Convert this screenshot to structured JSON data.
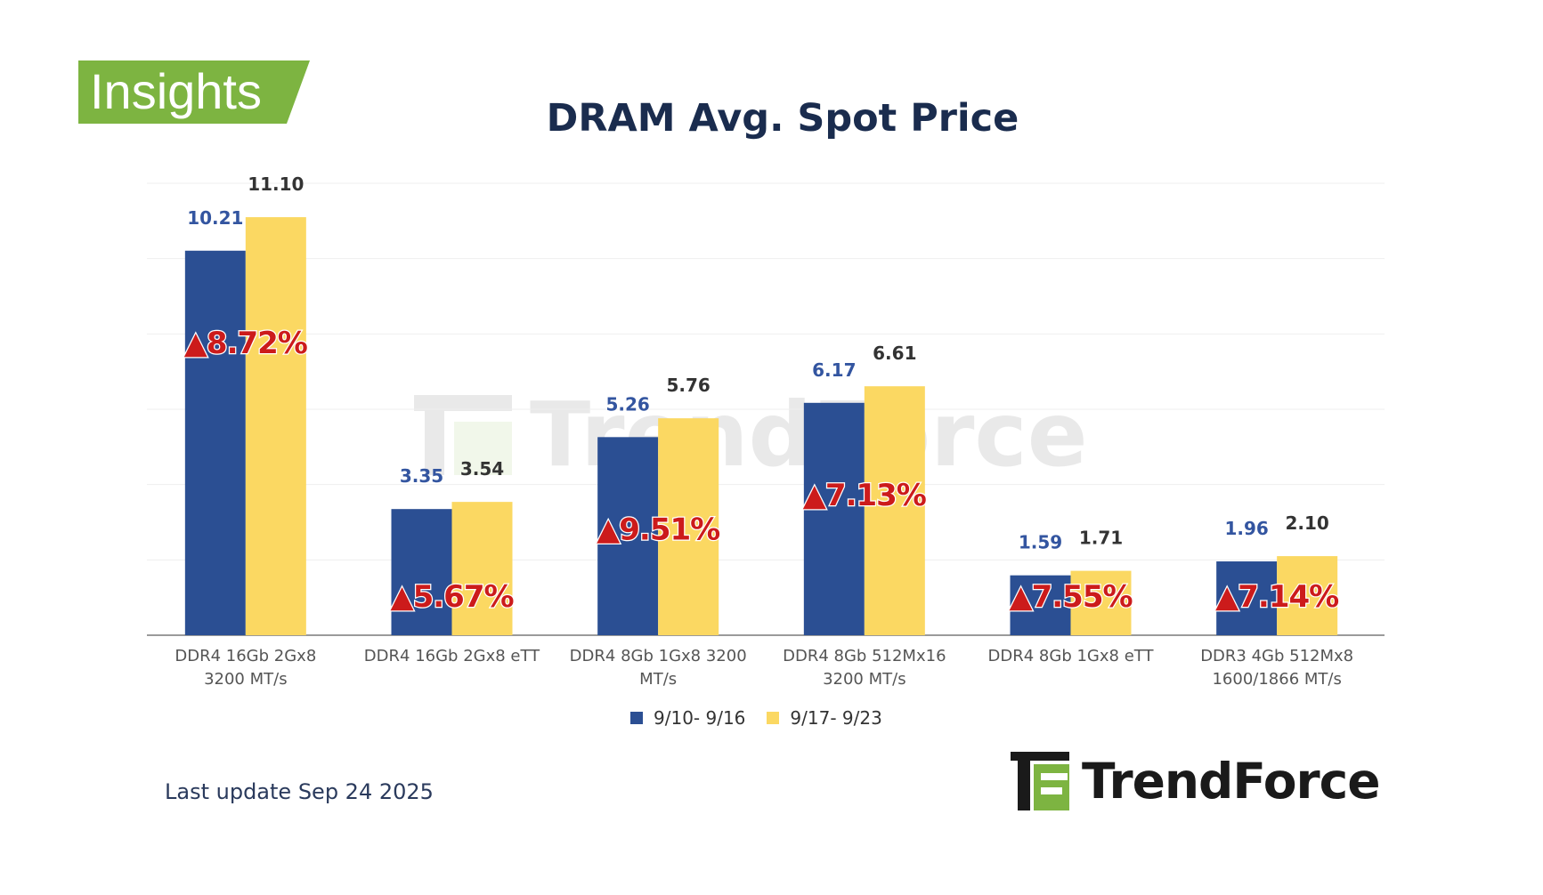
{
  "badge": {
    "label": "Insights",
    "color": "#7db441"
  },
  "last_update": "Last update Sep 24  2025",
  "brand": {
    "name": "TrendForce"
  },
  "watermark": {
    "text": "TrendForce"
  },
  "colors": {
    "series1": "#2b4f93",
    "series2": "#fbd862",
    "change": "#cc1b1b",
    "title": "#1a2c4e",
    "value1": "#3355a0",
    "value2": "#333333"
  },
  "chart_data": {
    "type": "bar",
    "title": "DRAM Avg. Spot Price",
    "xlabel": "",
    "ylabel": "",
    "ylim": [
      0,
      12
    ],
    "grid": true,
    "legend_position": "bottom",
    "categories": [
      [
        "DDR4 16Gb 2Gx8",
        "3200 MT/s"
      ],
      [
        "DDR4 16Gb 2Gx8 eTT"
      ],
      [
        "DDR4 8Gb 1Gx8 3200",
        "MT/s"
      ],
      [
        "DDR4 8Gb 512Mx16",
        "3200 MT/s"
      ],
      [
        "DDR4 8Gb 1Gx8 eTT"
      ],
      [
        "DDR3 4Gb 512Mx8",
        "1600/1866  MT/s"
      ]
    ],
    "series": [
      {
        "name": "9/10- 9/16",
        "values": [
          10.21,
          3.35,
          5.26,
          6.17,
          1.59,
          1.96
        ],
        "labels": [
          "10.21",
          "3.35",
          "5.26",
          "6.17",
          "1.59",
          "1.96"
        ]
      },
      {
        "name": "9/17- 9/23",
        "values": [
          11.1,
          3.54,
          5.76,
          6.61,
          1.71,
          2.1
        ],
        "labels": [
          "11.10",
          "3.54",
          "5.76",
          "6.61",
          "1.71",
          "2.10"
        ]
      }
    ],
    "changes": [
      "▲8.72%",
      "▲5.67%",
      "▲9.51%",
      "▲7.13%",
      "▲7.55%",
      "▲7.14%"
    ]
  }
}
